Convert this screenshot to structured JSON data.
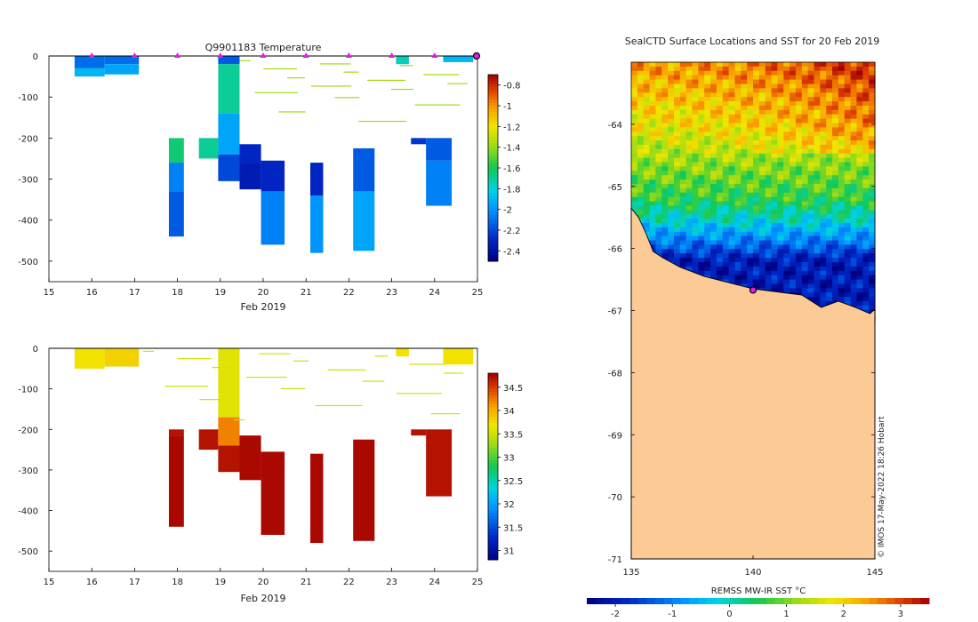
{
  "chart_data": [
    {
      "type": "heatmap",
      "title": "Q9901183  Temperature",
      "xlabel": "Feb 2019",
      "ylabel": "",
      "xlim": [
        15,
        25
      ],
      "ylim": [
        -550,
        0
      ],
      "xticks": [
        "15",
        "16",
        "17",
        "18",
        "19",
        "20",
        "21",
        "22",
        "23",
        "24",
        "25"
      ],
      "yticks": [
        "0",
        "-100",
        "-200",
        "-300",
        "-400",
        "-500"
      ],
      "colorbar": {
        "ticks": [
          "-0.8",
          "-1",
          "-1.2",
          "-1.4",
          "-1.6",
          "-1.8",
          "-2",
          "-2.2",
          "-2.4"
        ],
        "range": [
          -2.5,
          -0.7
        ]
      },
      "surface_markers": [
        16,
        17,
        18,
        19,
        20,
        21,
        22,
        23,
        24
      ],
      "last_position_marker": 25,
      "profiles": [
        {
          "t0": 15.6,
          "t1": 16.3,
          "segments": [
            [
              0,
              -30,
              -2.1
            ],
            [
              -30,
              -50,
              -1.9
            ]
          ]
        },
        {
          "t0": 16.3,
          "t1": 17.1,
          "segments": [
            [
              0,
              -20,
              -2.1
            ],
            [
              -20,
              -45,
              -1.95
            ]
          ]
        },
        {
          "t0": 17.8,
          "t1": 18.15,
          "segments": [
            [
              -200,
              -260,
              -1.65
            ],
            [
              -260,
              -330,
              -2.05
            ],
            [
              -330,
              -440,
              -2.15
            ]
          ]
        },
        {
          "t0": 18.5,
          "t1": 18.95,
          "segments": [
            [
              -200,
              -250,
              -1.7
            ]
          ]
        },
        {
          "t0": 18.95,
          "t1": 19.45,
          "segments": [
            [
              0,
              -20,
              -2.15
            ],
            [
              -20,
              -140,
              -1.7
            ],
            [
              -140,
              -240,
              -1.95
            ],
            [
              -240,
              -305,
              -2.2
            ]
          ]
        },
        {
          "t0": 19.45,
          "t1": 19.95,
          "segments": [
            [
              -215,
              -260,
              -2.3
            ],
            [
              -260,
              -325,
              -2.35
            ]
          ]
        },
        {
          "t0": 19.95,
          "t1": 20.5,
          "segments": [
            [
              -255,
              -330,
              -2.3
            ],
            [
              -330,
              -460,
              -2.05
            ]
          ]
        },
        {
          "t0": 21.1,
          "t1": 21.4,
          "segments": [
            [
              -260,
              -340,
              -2.3
            ],
            [
              -340,
              -480,
              -2.0
            ]
          ]
        },
        {
          "t0": 22.1,
          "t1": 22.6,
          "segments": [
            [
              -225,
              -330,
              -2.15
            ],
            [
              -330,
              -475,
              -1.95
            ]
          ]
        },
        {
          "t0": 23.1,
          "t1": 23.4,
          "segments": [
            [
              0,
              -20,
              -1.75
            ]
          ]
        },
        {
          "t0": 23.45,
          "t1": 23.8,
          "segments": [
            [
              -200,
              -215,
              -2.25
            ]
          ]
        },
        {
          "t0": 23.8,
          "t1": 24.4,
          "segments": [
            [
              -200,
              -255,
              -2.15
            ],
            [
              -255,
              -365,
              -2.05
            ]
          ]
        },
        {
          "t0": 24.2,
          "t1": 24.9,
          "segments": [
            [
              0,
              -15,
              -1.9
            ]
          ]
        }
      ],
      "spikes": [
        {
          "t0": 19.45,
          "t1": 25.0,
          "depths": [
            -10,
            -18,
            -22,
            -30,
            -38,
            -44,
            -52,
            -58,
            -66,
            -72,
            -80,
            -88,
            -100,
            -118,
            -135,
            -158
          ]
        }
      ]
    },
    {
      "type": "heatmap",
      "title": "",
      "xlabel": "Feb 2019",
      "ylabel": "",
      "xlim": [
        15,
        25
      ],
      "ylim": [
        -550,
        0
      ],
      "xticks": [
        "15",
        "16",
        "17",
        "18",
        "19",
        "20",
        "21",
        "22",
        "23",
        "24",
        "25"
      ],
      "yticks": [
        "0",
        "-100",
        "-200",
        "-300",
        "-400",
        "-500"
      ],
      "colorbar": {
        "ticks": [
          "34.5",
          "34",
          "33.5",
          "33",
          "32.5",
          "32",
          "31.5",
          "31"
        ],
        "range": [
          30.8,
          34.8
        ]
      },
      "profiles": [
        {
          "t0": 15.6,
          "t1": 16.3,
          "segments": [
            [
              0,
              -50,
              33.7
            ]
          ]
        },
        {
          "t0": 16.3,
          "t1": 17.1,
          "segments": [
            [
              0,
              -45,
              33.8
            ]
          ]
        },
        {
          "t0": 17.8,
          "t1": 18.15,
          "segments": [
            [
              -200,
              -215,
              34.7
            ],
            [
              -215,
              -440,
              34.75
            ]
          ]
        },
        {
          "t0": 18.5,
          "t1": 18.95,
          "segments": [
            [
              -200,
              -250,
              34.7
            ]
          ]
        },
        {
          "t0": 18.95,
          "t1": 19.45,
          "segments": [
            [
              0,
              -170,
              33.6
            ],
            [
              -170,
              -240,
              34.2
            ],
            [
              -240,
              -305,
              34.7
            ]
          ]
        },
        {
          "t0": 19.45,
          "t1": 19.95,
          "segments": [
            [
              -215,
              -325,
              34.75
            ]
          ]
        },
        {
          "t0": 19.95,
          "t1": 20.5,
          "segments": [
            [
              -255,
              -460,
              34.75
            ]
          ]
        },
        {
          "t0": 21.1,
          "t1": 21.4,
          "segments": [
            [
              -260,
              -480,
              34.75
            ]
          ]
        },
        {
          "t0": 22.1,
          "t1": 22.6,
          "segments": [
            [
              -225,
              -475,
              34.75
            ]
          ]
        },
        {
          "t0": 23.1,
          "t1": 23.4,
          "segments": [
            [
              0,
              -20,
              33.7
            ]
          ]
        },
        {
          "t0": 23.45,
          "t1": 23.8,
          "segments": [
            [
              -200,
              -215,
              34.7
            ]
          ]
        },
        {
          "t0": 23.8,
          "t1": 24.4,
          "segments": [
            [
              -200,
              -365,
              34.7
            ]
          ]
        },
        {
          "t0": 24.2,
          "t1": 24.9,
          "segments": [
            [
              0,
              -40,
              33.7
            ]
          ]
        }
      ],
      "spikes": [
        {
          "t0": 17.2,
          "t1": 25.0,
          "depths": [
            -6,
            -12,
            -18,
            -24,
            -30,
            -38,
            -46,
            -52,
            -60,
            -70,
            -80,
            -92,
            -98,
            -110,
            -125,
            -140,
            -160,
            -175
          ]
        }
      ]
    },
    {
      "type": "heatmap",
      "title": "SealCTD Surface Locations and SST for 20 Feb 2019",
      "xlabel": "",
      "ylabel": "",
      "xlim": [
        135,
        145
      ],
      "ylim": [
        -71,
        -63
      ],
      "xticks": [
        "135",
        "140",
        "145"
      ],
      "yticks": [
        "-64",
        "-65",
        "-66",
        "-67",
        "-68",
        "-69",
        "-70",
        "-71"
      ],
      "colorbar": {
        "label": "REMSS MW-IR SST °C",
        "ticks": [
          "-2",
          "-1",
          "0",
          "1",
          "2",
          "3"
        ],
        "range": [
          -2.5,
          3.5
        ]
      },
      "sst_sample": [
        {
          "lat": -63.1,
          "sst": 2.4
        },
        {
          "lat": -63.5,
          "sst": 2.1
        },
        {
          "lat": -64.0,
          "sst": 1.8
        },
        {
          "lat": -64.4,
          "sst": 1.4
        },
        {
          "lat": -64.8,
          "sst": 1.0
        },
        {
          "lat": -65.2,
          "sst": 0.6
        },
        {
          "lat": -65.5,
          "sst": 0.0
        },
        {
          "lat": -65.8,
          "sst": -0.8
        },
        {
          "lat": -66.2,
          "sst": -2.0
        }
      ],
      "seal_location": {
        "lon": 140.0,
        "lat": -66.67
      },
      "credit": "© IMOS 17-May-2022 18:26 Hobart"
    }
  ]
}
